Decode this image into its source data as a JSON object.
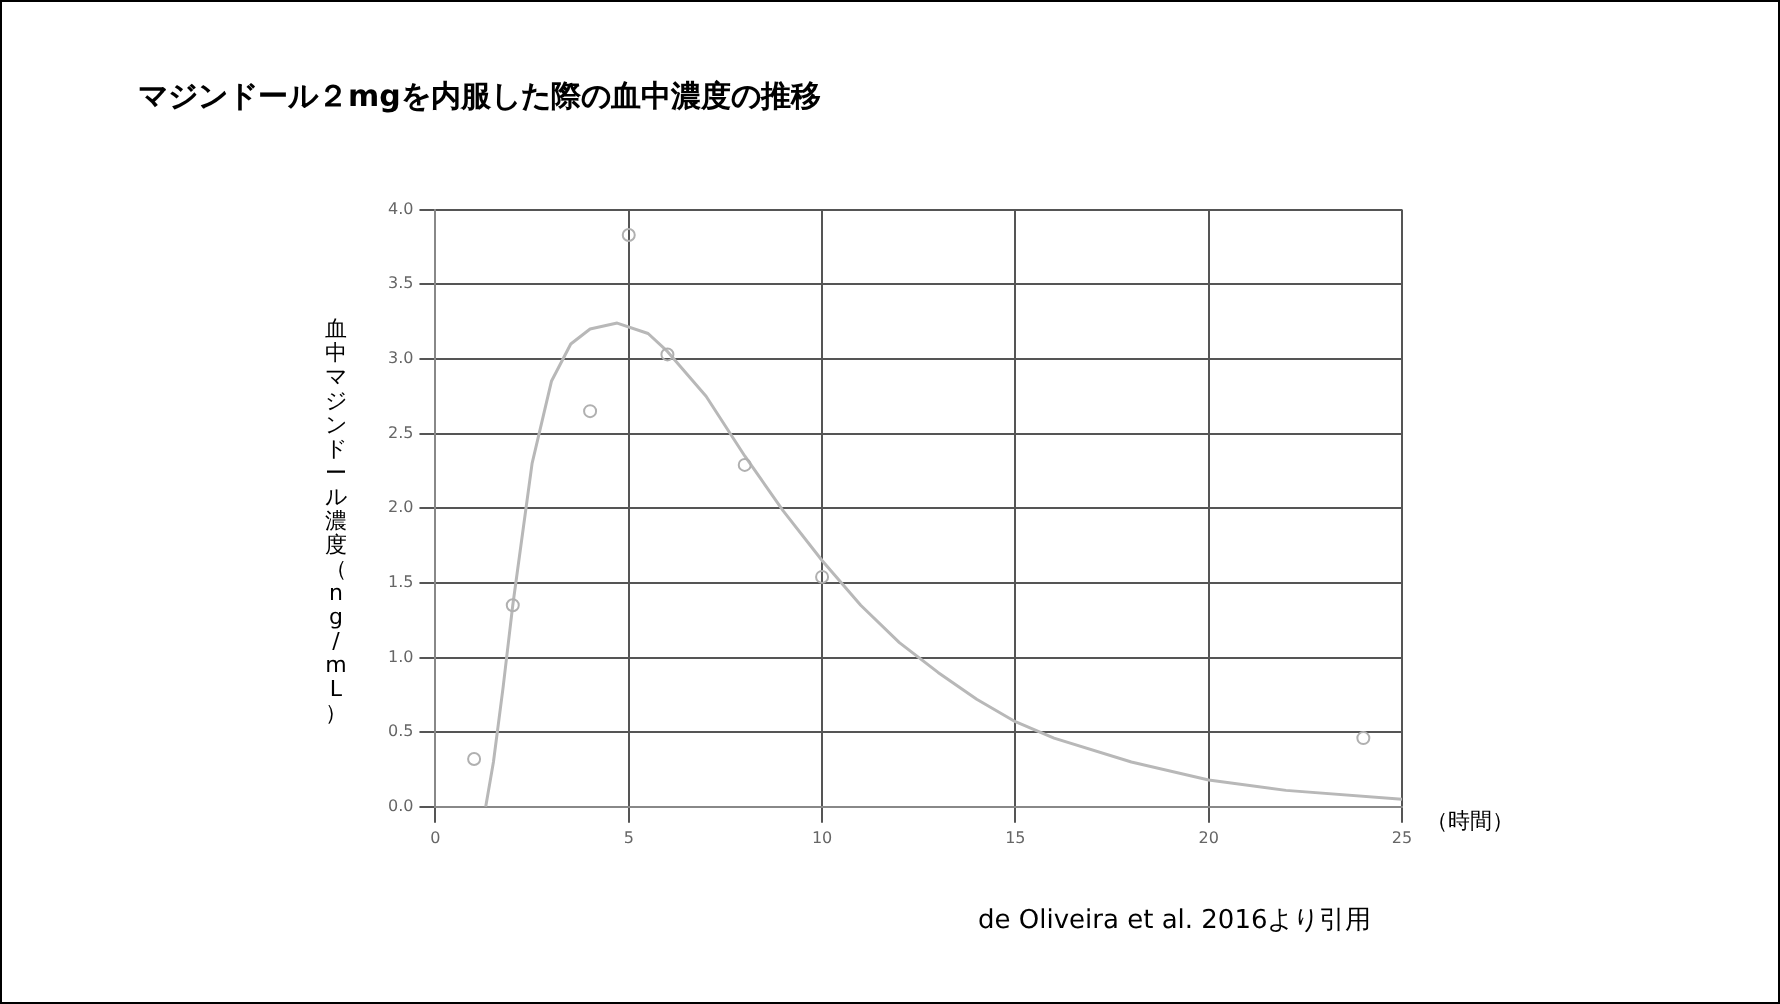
{
  "chart_data": {
    "type": "scatter",
    "title": "マジンドール２mgを内服した際の血中濃度の推移",
    "ylabel": "血中マジンドール濃度（ng/mL）",
    "xlabel": "（時間）",
    "annotations": [
      "de Oliveira et al. 2016より引用"
    ],
    "xlim": [
      0,
      25
    ],
    "xticks": [
      0,
      5,
      10,
      15,
      20,
      25
    ],
    "ylim": [
      0,
      4
    ],
    "yticks": [
      {
        "value": 0,
        "label": "0.0"
      },
      {
        "value": 0.5,
        "label": "0.5"
      },
      {
        "value": 1,
        "label": "1.0"
      },
      {
        "value": 1.5,
        "label": "1.5"
      },
      {
        "value": 2,
        "label": "2.0"
      },
      {
        "value": 2.5,
        "label": "2.5"
      },
      {
        "value": 3,
        "label": "3.0"
      },
      {
        "value": 3.5,
        "label": "3.5"
      },
      {
        "value": 4,
        "label": "4.0"
      }
    ],
    "grid": true,
    "legend": false,
    "marker": "circle",
    "series": [
      {
        "type": "scatter",
        "color": "#b0b0b0",
        "x": [
          1,
          2,
          4,
          5,
          6,
          8,
          10,
          24
        ],
        "values": [
          0.32,
          1.35,
          2.65,
          3.83,
          3.03,
          2.29,
          1.54,
          0.46
        ]
      },
      {
        "type": "line",
        "color": "#b8b8b8",
        "marker": "none",
        "x": [
          1.3,
          1.5,
          1.75,
          2,
          2.5,
          3,
          3.5,
          4,
          4.7,
          5.5,
          6,
          7,
          8,
          9,
          10,
          11,
          12,
          13,
          14,
          15,
          16,
          18,
          20,
          22,
          25
        ],
        "values": [
          0,
          0.3,
          0.8,
          1.35,
          2.3,
          2.85,
          3.1,
          3.2,
          3.24,
          3.17,
          3.05,
          2.75,
          2.35,
          1.98,
          1.65,
          1.35,
          1.1,
          0.9,
          0.72,
          0.57,
          0.46,
          0.3,
          0.18,
          0.11,
          0.05
        ]
      }
    ]
  }
}
